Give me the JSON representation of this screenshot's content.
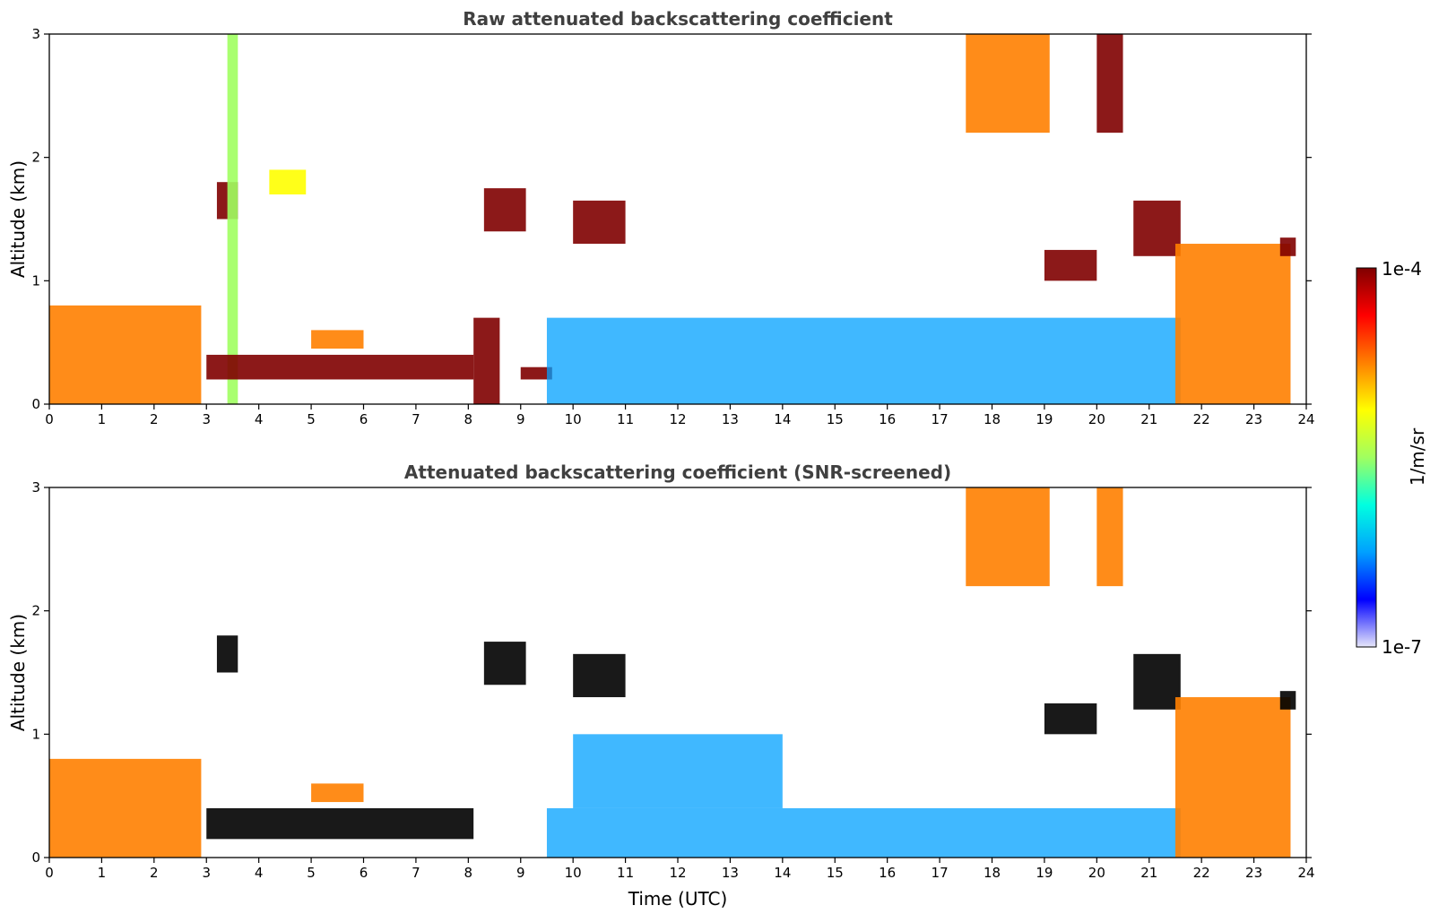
{
  "chart_data": [
    {
      "type": "heatmap",
      "title": "Raw attenuated backscattering coefficient",
      "xlabel": "",
      "ylabel": "Altitude (km)",
      "xlim": [
        0,
        24
      ],
      "ylim": [
        0,
        3
      ],
      "x_ticks": [
        0,
        1,
        2,
        3,
        4,
        5,
        6,
        7,
        8,
        9,
        10,
        11,
        12,
        13,
        14,
        15,
        16,
        17,
        18,
        19,
        20,
        21,
        22,
        23,
        24
      ],
      "y_ticks": [
        0,
        1,
        2,
        3
      ],
      "features": [
        {
          "x": [
            0.0,
            2.9
          ],
          "y": [
            0.0,
            0.8
          ],
          "level": "high"
        },
        {
          "x": [
            3.2,
            3.6
          ],
          "y": [
            1.5,
            1.8
          ],
          "level": "very-high"
        },
        {
          "x": [
            3.4,
            3.6
          ],
          "y": [
            0.0,
            3.0
          ],
          "level": "mid"
        },
        {
          "x": [
            4.2,
            4.9
          ],
          "y": [
            1.7,
            1.9
          ],
          "level": "mid-high"
        },
        {
          "x": [
            3.0,
            8.1
          ],
          "y": [
            0.2,
            0.4
          ],
          "level": "very-high"
        },
        {
          "x": [
            5.0,
            6.0
          ],
          "y": [
            0.45,
            0.6
          ],
          "level": "high"
        },
        {
          "x": [
            8.1,
            8.6
          ],
          "y": [
            0.0,
            0.7
          ],
          "level": "very-high"
        },
        {
          "x": [
            8.3,
            9.1
          ],
          "y": [
            1.4,
            1.75
          ],
          "level": "very-high"
        },
        {
          "x": [
            9.0,
            9.6
          ],
          "y": [
            0.2,
            0.3
          ],
          "level": "very-high"
        },
        {
          "x": [
            10.0,
            11.0
          ],
          "y": [
            1.3,
            1.65
          ],
          "level": "very-high"
        },
        {
          "x": [
            9.5,
            21.6
          ],
          "y": [
            0.0,
            0.7
          ],
          "level": "low"
        },
        {
          "x": [
            17.5,
            19.1
          ],
          "y": [
            2.2,
            3.0
          ],
          "level": "high"
        },
        {
          "x": [
            20.0,
            20.5
          ],
          "y": [
            2.2,
            3.0
          ],
          "level": "very-high"
        },
        {
          "x": [
            19.0,
            20.0
          ],
          "y": [
            1.0,
            1.25
          ],
          "level": "very-high"
        },
        {
          "x": [
            20.7,
            21.6
          ],
          "y": [
            1.2,
            1.65
          ],
          "level": "very-high"
        },
        {
          "x": [
            21.5,
            23.7
          ],
          "y": [
            0.0,
            1.3
          ],
          "level": "high"
        },
        {
          "x": [
            23.5,
            23.8
          ],
          "y": [
            1.2,
            1.35
          ],
          "level": "very-high"
        }
      ]
    },
    {
      "type": "heatmap",
      "title": "Attenuated backscattering coefficient (SNR-screened)",
      "xlabel": "Time (UTC)",
      "ylabel": "Altitude (km)",
      "xlim": [
        0,
        24
      ],
      "ylim": [
        0,
        3
      ],
      "x_ticks": [
        0,
        1,
        2,
        3,
        4,
        5,
        6,
        7,
        8,
        9,
        10,
        11,
        12,
        13,
        14,
        15,
        16,
        17,
        18,
        19,
        20,
        21,
        22,
        23,
        24
      ],
      "y_ticks": [
        0,
        1,
        2,
        3
      ],
      "features": [
        {
          "x": [
            0.0,
            2.9
          ],
          "y": [
            0.0,
            0.8
          ],
          "level": "high"
        },
        {
          "x": [
            3.2,
            3.6
          ],
          "y": [
            1.5,
            1.8
          ],
          "level": "saturated"
        },
        {
          "x": [
            3.0,
            8.1
          ],
          "y": [
            0.15,
            0.4
          ],
          "level": "saturated"
        },
        {
          "x": [
            5.0,
            6.0
          ],
          "y": [
            0.45,
            0.6
          ],
          "level": "high"
        },
        {
          "x": [
            8.3,
            9.1
          ],
          "y": [
            1.4,
            1.75
          ],
          "level": "saturated"
        },
        {
          "x": [
            10.0,
            11.0
          ],
          "y": [
            1.3,
            1.65
          ],
          "level": "saturated"
        },
        {
          "x": [
            9.5,
            21.6
          ],
          "y": [
            0.0,
            0.4
          ],
          "level": "low"
        },
        {
          "x": [
            10.0,
            14.0
          ],
          "y": [
            0.4,
            1.0
          ],
          "level": "low"
        },
        {
          "x": [
            17.5,
            19.1
          ],
          "y": [
            2.2,
            3.0
          ],
          "level": "high"
        },
        {
          "x": [
            20.0,
            20.5
          ],
          "y": [
            2.2,
            3.0
          ],
          "level": "high"
        },
        {
          "x": [
            19.0,
            20.0
          ],
          "y": [
            1.0,
            1.25
          ],
          "level": "saturated"
        },
        {
          "x": [
            20.7,
            21.6
          ],
          "y": [
            1.2,
            1.65
          ],
          "level": "saturated"
        },
        {
          "x": [
            21.5,
            23.7
          ],
          "y": [
            0.0,
            1.3
          ],
          "level": "high"
        },
        {
          "x": [
            23.5,
            23.8
          ],
          "y": [
            1.2,
            1.35
          ],
          "level": "saturated"
        }
      ]
    }
  ],
  "colorbar": {
    "label": "1/m/sr",
    "max_label": "1e-4",
    "min_label": "1e-7",
    "colormap": "jet",
    "colors": [
      "#e6e6fa",
      "#0000ff",
      "#00a0ff",
      "#00ffe0",
      "#a0ff60",
      "#ffff00",
      "#ff8000",
      "#ff0000",
      "#800000"
    ]
  }
}
